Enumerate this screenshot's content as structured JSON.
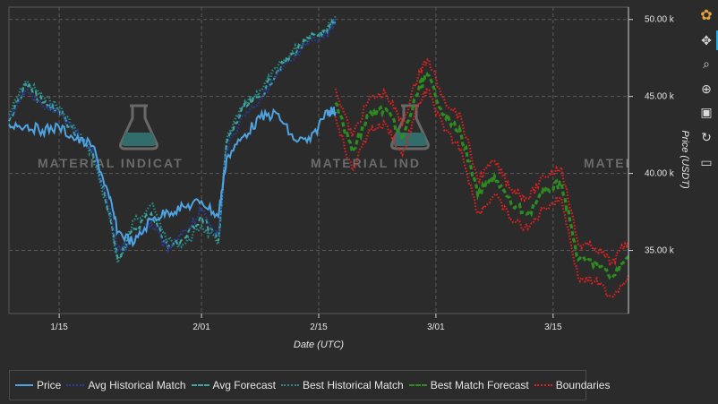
{
  "chart_data": {
    "type": "line",
    "xlabel": "Date (UTC)",
    "ylabel": "Price (USDT)",
    "x_ticks": [
      "1/15",
      "2/01",
      "2/15",
      "3/01",
      "3/15"
    ],
    "y_ticks": [
      "35.00 k",
      "40.00 k",
      "45.00 k",
      "50.00 k"
    ],
    "x_range": [
      "2022-01-09",
      "2022-03-24"
    ],
    "ylim": [
      30900,
      50800
    ],
    "watermark": "MATERIAL INDICATORS",
    "grid": true,
    "legend_position": "bottom",
    "series": [
      {
        "name": "Price",
        "color": "#4fa3e0",
        "style": "solid",
        "x": [
          "2022-01-09",
          "2022-01-11",
          "2022-01-13",
          "2022-01-15",
          "2022-01-17",
          "2022-01-19",
          "2022-01-21",
          "2022-01-22",
          "2022-01-24",
          "2022-01-26",
          "2022-01-28",
          "2022-01-30",
          "2022-02-01",
          "2022-02-03",
          "2022-02-04",
          "2022-02-06",
          "2022-02-08",
          "2022-02-10",
          "2022-02-12",
          "2022-02-14",
          "2022-02-16",
          "2022-02-17"
        ],
        "values": [
          43200,
          43100,
          42800,
          43000,
          42200,
          41800,
          38400,
          36200,
          35500,
          37000,
          37500,
          37800,
          38200,
          37200,
          41000,
          42400,
          43600,
          43900,
          42200,
          42100,
          44100,
          44000
        ]
      },
      {
        "name": "Avg Historical Match",
        "color": "#2a3d9c",
        "style": "dotted",
        "x": [
          "2022-01-09",
          "2022-01-11",
          "2022-01-13",
          "2022-01-15",
          "2022-01-17",
          "2022-01-19",
          "2022-01-21",
          "2022-01-22",
          "2022-01-24",
          "2022-01-26",
          "2022-01-28",
          "2022-01-30",
          "2022-02-01",
          "2022-02-03",
          "2022-02-04",
          "2022-02-06",
          "2022-02-08",
          "2022-02-10",
          "2022-02-12",
          "2022-02-14",
          "2022-02-16",
          "2022-02-17"
        ],
        "values": [
          43600,
          45400,
          44400,
          43900,
          42600,
          41600,
          37800,
          34900,
          35800,
          36800,
          35000,
          36200,
          37600,
          36000,
          41600,
          43800,
          44800,
          46400,
          47400,
          48600,
          49000,
          49800
        ]
      },
      {
        "name": "Avg Forecast",
        "color": "#3fa3a0",
        "style": "dashed",
        "x": [
          "2022-01-09",
          "2022-01-11",
          "2022-01-13",
          "2022-01-15",
          "2022-01-17",
          "2022-01-19",
          "2022-01-21",
          "2022-01-22",
          "2022-01-24",
          "2022-01-26",
          "2022-01-28",
          "2022-01-30",
          "2022-02-01",
          "2022-02-03",
          "2022-02-04",
          "2022-02-06",
          "2022-02-08",
          "2022-02-10",
          "2022-02-12",
          "2022-02-14",
          "2022-02-16",
          "2022-02-17"
        ],
        "values": [
          43400,
          45800,
          44600,
          44100,
          42400,
          41400,
          37400,
          34500,
          36400,
          37400,
          35200,
          35800,
          37200,
          35600,
          42000,
          44200,
          45000,
          46600,
          47800,
          48800,
          49200,
          50000
        ]
      },
      {
        "name": "Best Historical Match",
        "color": "#2a8a86",
        "style": "dotted",
        "x": [
          "2022-01-09",
          "2022-01-11",
          "2022-01-13",
          "2022-01-15",
          "2022-01-17",
          "2022-01-19",
          "2022-01-21",
          "2022-01-22",
          "2022-01-24",
          "2022-01-26",
          "2022-01-28",
          "2022-01-30",
          "2022-02-01",
          "2022-02-03",
          "2022-02-04",
          "2022-02-06",
          "2022-02-08",
          "2022-02-10",
          "2022-02-12",
          "2022-02-14",
          "2022-02-16",
          "2022-02-17"
        ],
        "values": [
          43800,
          46000,
          45000,
          44300,
          42800,
          41200,
          37200,
          34200,
          37000,
          38000,
          35600,
          35400,
          36600,
          35400,
          42200,
          44400,
          45400,
          46800,
          48000,
          49000,
          49400,
          50200
        ]
      },
      {
        "name": "Best Match Forecast",
        "color": "#2e8b1f",
        "style": "dashed",
        "x": [
          "2022-02-17",
          "2022-02-19",
          "2022-02-21",
          "2022-02-23",
          "2022-02-25",
          "2022-02-27",
          "2022-02-28",
          "2022-03-02",
          "2022-03-04",
          "2022-03-06",
          "2022-03-08",
          "2022-03-10",
          "2022-03-12",
          "2022-03-14",
          "2022-03-16",
          "2022-03-18",
          "2022-03-20",
          "2022-03-22",
          "2022-03-24"
        ],
        "values": [
          44600,
          41400,
          43800,
          44200,
          42200,
          45600,
          46400,
          43800,
          42600,
          38600,
          39800,
          38000,
          37400,
          38800,
          39400,
          34400,
          34200,
          33200,
          34600
        ]
      },
      {
        "name": "Boundaries",
        "color": "#e02020",
        "style": "dotted",
        "bands": [
          {
            "x": [
              "2022-02-17",
              "2022-02-19",
              "2022-02-21",
              "2022-02-23",
              "2022-02-25",
              "2022-02-27",
              "2022-02-28",
              "2022-03-02",
              "2022-03-04",
              "2022-03-06",
              "2022-03-08",
              "2022-03-10",
              "2022-03-12",
              "2022-03-14",
              "2022-03-16",
              "2022-03-18",
              "2022-03-20",
              "2022-03-22",
              "2022-03-24"
            ],
            "values": [
              45500,
              42400,
              44800,
              45200,
              43200,
              46600,
              47400,
              44800,
              43600,
              39600,
              40800,
              39000,
              38400,
              39800,
              40400,
              35400,
              35200,
              34200,
              35600
            ]
          },
          {
            "x": [
              "2022-02-17",
              "2022-02-19",
              "2022-02-21",
              "2022-02-23",
              "2022-02-25",
              "2022-02-27",
              "2022-02-28",
              "2022-03-02",
              "2022-03-04",
              "2022-03-06",
              "2022-03-08",
              "2022-03-10",
              "2022-03-12",
              "2022-03-14",
              "2022-03-16",
              "2022-03-18",
              "2022-03-20",
              "2022-03-22",
              "2022-03-24"
            ],
            "values": [
              43700,
              40200,
              42800,
              43200,
              41200,
              44600,
              45400,
              42800,
              41600,
              37400,
              38600,
              37000,
              36400,
              37800,
              38400,
              33200,
              33000,
              32000,
              33400
            ]
          }
        ]
      }
    ]
  },
  "legend": {
    "items": [
      {
        "label": "Price",
        "color": "#4fa3e0",
        "style": "solid"
      },
      {
        "label": "Avg Historical Match",
        "color": "#2a3d9c",
        "style": "dotted"
      },
      {
        "label": "Avg Forecast",
        "color": "#3fa3a0",
        "style": "dashed"
      },
      {
        "label": "Best Historical Match",
        "color": "#2a8a86",
        "style": "dotted"
      },
      {
        "label": "Best Match Forecast",
        "color": "#2e8b1f",
        "style": "dashed"
      },
      {
        "label": "Boundaries",
        "color": "#e02020",
        "style": "dotted"
      }
    ]
  },
  "toolbar": {
    "items": [
      {
        "name": "bokeh-logo-icon",
        "glyph": "✿"
      },
      {
        "name": "pan-icon",
        "glyph": "✥"
      },
      {
        "name": "box-zoom-icon",
        "glyph": "⌕"
      },
      {
        "name": "wheel-zoom-icon",
        "glyph": "⊕"
      },
      {
        "name": "save-icon",
        "glyph": "▣"
      },
      {
        "name": "reset-icon",
        "glyph": "↻"
      },
      {
        "name": "hover-icon",
        "glyph": "▭"
      }
    ]
  }
}
